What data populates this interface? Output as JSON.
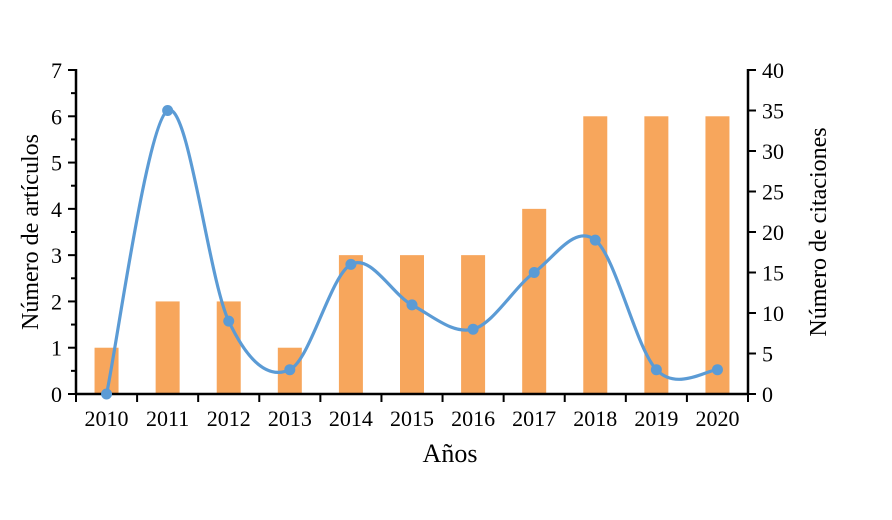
{
  "chart_data": {
    "type": "bar",
    "subtype": "combo-bar-line-dual-axis",
    "title": "",
    "categories": [
      "2010",
      "2011",
      "2012",
      "2013",
      "2014",
      "2015",
      "2016",
      "2017",
      "2018",
      "2019",
      "2020"
    ],
    "series": [
      {
        "name": "Número de artículos",
        "type": "bar",
        "axis": "left",
        "color": "#F7A65C",
        "values": [
          1,
          2,
          2,
          1,
          3,
          3,
          3,
          4,
          6,
          6,
          6
        ]
      },
      {
        "name": "Número de citaciones",
        "type": "line",
        "axis": "right",
        "color": "#5B9BD5",
        "marker": "circle",
        "smooth": true,
        "values": [
          0,
          35,
          9,
          3,
          16,
          11,
          8,
          15,
          19,
          3,
          3
        ]
      }
    ],
    "xlabel": "Años",
    "ylabel_left": "Número de artículos",
    "ylabel_right": "Número de citaciones",
    "ylim_left": [
      0,
      7
    ],
    "ylim_right": [
      0,
      40
    ],
    "yticks_left": [
      0,
      1,
      2,
      3,
      4,
      5,
      6,
      7
    ],
    "yticks_right": [
      0,
      5,
      10,
      15,
      20,
      25,
      30,
      35,
      40
    ],
    "minor_tick_step_left": 0.5,
    "grid": false,
    "legend_position": "none",
    "background": "#ffffff",
    "axis_color": "#000000"
  }
}
